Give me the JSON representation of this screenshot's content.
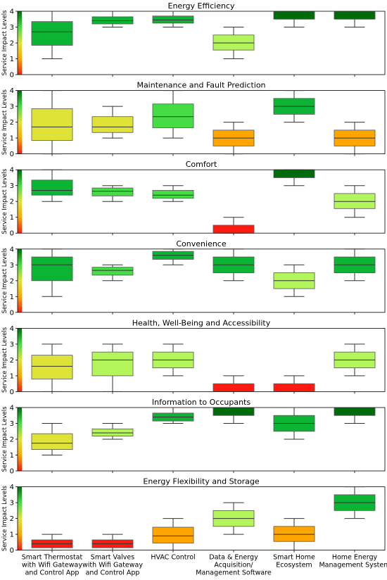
{
  "figure": {
    "ylabel": "Service Impact Levels",
    "x_categories": [
      [
        "Smart Thermostat",
        "with Wifi Gateway",
        "and Control App"
      ],
      [
        "Smart Valves",
        "with Wifi Gateway",
        "and Control App"
      ],
      [
        "HVAC Control"
      ],
      [
        "Data & Energy",
        "Acquisition/",
        "Management Software"
      ],
      [
        "Smart Home",
        "Ecosystem"
      ],
      [
        "Home Energy",
        "Management System"
      ]
    ],
    "colors": {
      "level_0": "#ff1a10",
      "level_1": "#ffa500",
      "level_2_low": "#dfe337",
      "level_2": "#b5f55c",
      "level_3_low": "#44dd44",
      "level_3": "#0bb533",
      "level_4": "#006b0a"
    }
  },
  "chart_data": [
    {
      "type": "box",
      "title": "Energy Efficiency",
      "ylabel": "Service Impact Levels",
      "ylim": [
        0,
        4
      ],
      "yticks": [
        0,
        1,
        2,
        3,
        4
      ],
      "categories": [
        "Smart Thermostat with Wifi Gateway and Control App",
        "Smart Valves with Wifi Gateway and Control App",
        "HVAC Control",
        "Data & Energy Acquisition/ Management Software",
        "Smart Home Ecosystem",
        "Home Energy Management System"
      ],
      "boxes": [
        {
          "whislo": 1,
          "q1": 1.85,
          "med": 2.7,
          "q3": 3.35,
          "whishi": 4,
          "color": "#0bb533"
        },
        {
          "whislo": 3,
          "q1": 3.2,
          "med": 3.4,
          "q3": 3.65,
          "whishi": 4,
          "color": "#0bb533"
        },
        {
          "whislo": 3,
          "q1": 3.25,
          "med": 3.45,
          "q3": 3.7,
          "whishi": 4,
          "color": "#0bb533"
        },
        {
          "whislo": 1,
          "q1": 1.55,
          "med": 2.0,
          "q3": 2.5,
          "whishi": 3,
          "color": "#b5f55c"
        },
        {
          "whislo": 3,
          "q1": 3.5,
          "med": 4.0,
          "q3": 4.0,
          "whishi": 4,
          "color": "#006b0a"
        },
        {
          "whislo": 3,
          "q1": 3.5,
          "med": 4.0,
          "q3": 4.0,
          "whishi": 4,
          "color": "#006b0a"
        }
      ]
    },
    {
      "type": "box",
      "title": "Maintenance and Fault Prediction",
      "ylabel": "Service Impact Levels",
      "ylim": [
        0,
        4
      ],
      "yticks": [
        0,
        1,
        2,
        3,
        4
      ],
      "categories": [
        "Smart Thermostat with Wifi Gateway and Control App",
        "Smart Valves with Wifi Gateway and Control App",
        "HVAC Control",
        "Data & Energy Acquisition/ Management Software",
        "Smart Home Ecosystem",
        "Home Energy Management System"
      ],
      "boxes": [
        {
          "whislo": 0,
          "q1": 0.85,
          "med": 1.7,
          "q3": 2.85,
          "whishi": 4,
          "color": "#dfe337"
        },
        {
          "whislo": 1,
          "q1": 1.35,
          "med": 1.7,
          "q3": 2.35,
          "whishi": 3,
          "color": "#dfe337"
        },
        {
          "whislo": 1,
          "q1": 1.65,
          "med": 2.35,
          "q3": 3.15,
          "whishi": 4,
          "color": "#44dd44"
        },
        {
          "whislo": 0,
          "q1": 0.5,
          "med": 1.0,
          "q3": 1.5,
          "whishi": 2,
          "color": "#ffa500"
        },
        {
          "whislo": 2,
          "q1": 2.5,
          "med": 3.0,
          "q3": 3.5,
          "whishi": 4,
          "color": "#0bb533"
        },
        {
          "whislo": 0,
          "q1": 0.5,
          "med": 1.0,
          "q3": 1.5,
          "whishi": 2,
          "color": "#ffa500"
        }
      ]
    },
    {
      "type": "box",
      "title": "Comfort",
      "ylabel": "Service Impact Levels",
      "ylim": [
        0,
        4
      ],
      "yticks": [
        0,
        1,
        2,
        3,
        4
      ],
      "categories": [
        "Smart Thermostat with Wifi Gateway and Control App",
        "Smart Valves with Wifi Gateway and Control App",
        "HVAC Control",
        "Data & Energy Acquisition/ Management Software",
        "Smart Home Ecosystem",
        "Home Energy Management System"
      ],
      "boxes": [
        {
          "whislo": 2,
          "q1": 2.4,
          "med": 2.7,
          "q3": 3.35,
          "whishi": 4,
          "color": "#0bb533"
        },
        {
          "whislo": 2,
          "q1": 2.35,
          "med": 2.65,
          "q3": 2.85,
          "whishi": 3,
          "color": "#44dd44"
        },
        {
          "whislo": 2,
          "q1": 2.2,
          "med": 2.4,
          "q3": 2.7,
          "whishi": 3,
          "color": "#44dd44"
        },
        {
          "whislo": 0,
          "q1": 0.0,
          "med": 0.0,
          "q3": 0.5,
          "whishi": 1,
          "color": "#ff1a10"
        },
        {
          "whislo": 3,
          "q1": 3.5,
          "med": 4.0,
          "q3": 4.0,
          "whishi": 4,
          "color": "#006b0a"
        },
        {
          "whislo": 1,
          "q1": 1.55,
          "med": 2.0,
          "q3": 2.5,
          "whishi": 3,
          "color": "#b5f55c"
        }
      ]
    },
    {
      "type": "box",
      "title": "Convenience",
      "ylabel": "Service Impact Levels",
      "ylim": [
        0,
        4
      ],
      "yticks": [
        0,
        1,
        2,
        3,
        4
      ],
      "categories": [
        "Smart Thermostat with Wifi Gateway and Control App",
        "Smart Valves with Wifi Gateway and Control App",
        "HVAC Control",
        "Data & Energy Acquisition/ Management Software",
        "Smart Home Ecosystem",
        "Home Energy Management System"
      ],
      "boxes": [
        {
          "whislo": 1,
          "q1": 2.0,
          "med": 3.0,
          "q3": 3.5,
          "whishi": 4,
          "color": "#0bb533"
        },
        {
          "whislo": 2,
          "q1": 2.35,
          "med": 2.65,
          "q3": 2.85,
          "whishi": 3,
          "color": "#44dd44"
        },
        {
          "whislo": 3,
          "q1": 3.35,
          "med": 3.6,
          "q3": 3.85,
          "whishi": 4,
          "color": "#0bb533"
        },
        {
          "whislo": 2,
          "q1": 2.5,
          "med": 3.0,
          "q3": 3.5,
          "whishi": 4,
          "color": "#0bb533"
        },
        {
          "whislo": 1,
          "q1": 1.5,
          "med": 2.0,
          "q3": 2.5,
          "whishi": 3,
          "color": "#b5f55c"
        },
        {
          "whislo": 2,
          "q1": 2.5,
          "med": 3.0,
          "q3": 3.5,
          "whishi": 4,
          "color": "#0bb533"
        }
      ]
    },
    {
      "type": "box",
      "title": "Health, Well-Being and Accessibility",
      "ylabel": "Service Impact Levels",
      "ylim": [
        0,
        4
      ],
      "yticks": [
        0,
        1,
        2,
        3,
        4
      ],
      "categories": [
        "Smart Thermostat with Wifi Gateway and Control App",
        "Smart Valves with Wifi Gateway and Control App",
        "HVAC Control",
        "Data & Energy Acquisition/ Management Software",
        "Smart Home Ecosystem",
        "Home Energy Management System"
      ],
      "boxes": [
        {
          "whislo": 0,
          "q1": 0.8,
          "med": 1.6,
          "q3": 2.3,
          "whishi": 3,
          "color": "#dfe337"
        },
        {
          "whislo": 0,
          "q1": 1.0,
          "med": 2.0,
          "q3": 2.5,
          "whishi": 3,
          "color": "#b5f55c"
        },
        {
          "whislo": 1,
          "q1": 1.5,
          "med": 2.0,
          "q3": 2.5,
          "whishi": 3,
          "color": "#b5f55c"
        },
        {
          "whislo": 0,
          "q1": 0.0,
          "med": 0.0,
          "q3": 0.5,
          "whishi": 1,
          "color": "#ff1a10"
        },
        {
          "whislo": 0,
          "q1": 0.0,
          "med": 0.0,
          "q3": 0.5,
          "whishi": 1,
          "color": "#ff1a10"
        },
        {
          "whislo": 1,
          "q1": 1.5,
          "med": 2.0,
          "q3": 2.5,
          "whishi": 3,
          "color": "#b5f55c"
        }
      ]
    },
    {
      "type": "box",
      "title": "Information to Occupants",
      "ylabel": "Service Impact Levels",
      "ylim": [
        0,
        4
      ],
      "yticks": [
        0,
        1,
        2,
        3,
        4
      ],
      "categories": [
        "Smart Thermostat with Wifi Gateway and Control App",
        "Smart Valves with Wifi Gateway and Control App",
        "HVAC Control",
        "Data & Energy Acquisition/ Management Software",
        "Smart Home Ecosystem",
        "Home Energy Management System"
      ],
      "boxes": [
        {
          "whislo": 1,
          "q1": 1.35,
          "med": 1.75,
          "q3": 2.35,
          "whishi": 3,
          "color": "#dfe337"
        },
        {
          "whislo": 2,
          "q1": 2.2,
          "med": 2.4,
          "q3": 2.65,
          "whishi": 3,
          "color": "#b5f55c"
        },
        {
          "whislo": 3,
          "q1": 3.15,
          "med": 3.4,
          "q3": 3.65,
          "whishi": 4,
          "color": "#0bb533"
        },
        {
          "whislo": 3,
          "q1": 3.5,
          "med": 4.0,
          "q3": 4.0,
          "whishi": 4,
          "color": "#006b0a"
        },
        {
          "whislo": 2,
          "q1": 2.5,
          "med": 3.0,
          "q3": 3.5,
          "whishi": 4,
          "color": "#0bb533"
        },
        {
          "whislo": 3,
          "q1": 3.5,
          "med": 4.0,
          "q3": 4.0,
          "whishi": 4,
          "color": "#006b0a"
        }
      ]
    },
    {
      "type": "box",
      "title": "Energy Flexibility and Storage",
      "ylabel": "Service Impact Levels",
      "ylim": [
        0,
        4
      ],
      "yticks": [
        0,
        1,
        2,
        3,
        4
      ],
      "categories": [
        "Smart Thermostat with Wifi Gateway and Control App",
        "Smart Valves with Wifi Gateway and Control App",
        "HVAC Control",
        "Data & Energy Acquisition/ Management Software",
        "Smart Home Ecosystem",
        "Home Energy Management System"
      ],
      "boxes": [
        {
          "whislo": 0,
          "q1": 0.15,
          "med": 0.4,
          "q3": 0.65,
          "whishi": 1,
          "color": "#ff1a10"
        },
        {
          "whislo": 0,
          "q1": 0.15,
          "med": 0.4,
          "q3": 0.65,
          "whishi": 1,
          "color": "#ff1a10"
        },
        {
          "whislo": 0,
          "q1": 0.45,
          "med": 0.9,
          "q3": 1.45,
          "whishi": 2,
          "color": "#ffa500"
        },
        {
          "whislo": 1,
          "q1": 1.5,
          "med": 2.0,
          "q3": 2.5,
          "whishi": 3,
          "color": "#b5f55c"
        },
        {
          "whislo": 0,
          "q1": 0.55,
          "med": 1.0,
          "q3": 1.5,
          "whishi": 2,
          "color": "#ffa500"
        },
        {
          "whislo": 2,
          "q1": 2.5,
          "med": 3.0,
          "q3": 3.5,
          "whishi": 4,
          "color": "#0bb533"
        }
      ]
    }
  ]
}
